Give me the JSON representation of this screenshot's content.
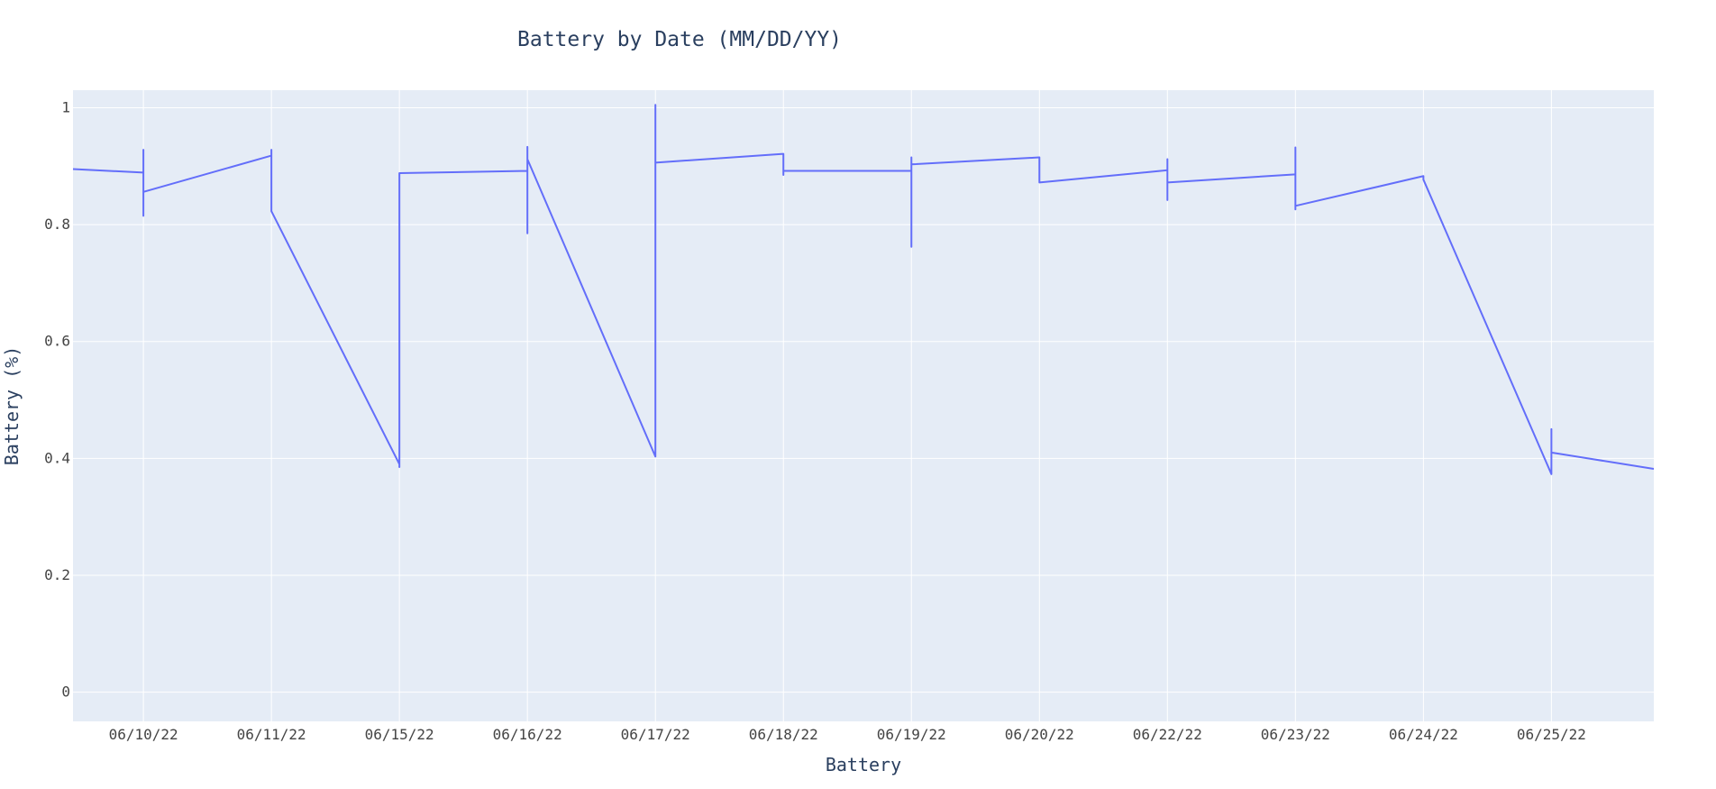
{
  "chart_data": {
    "type": "line",
    "title": "Battery by Date (MM/DD/YY)",
    "xlabel": "Battery",
    "ylabel": "Battery (%)",
    "ylim": [
      -0.05,
      1.03
    ],
    "y_ticks": [
      0,
      0.2,
      0.4,
      0.6,
      0.8,
      1
    ],
    "y_tick_labels": [
      "0",
      "0.2",
      "0.4",
      "0.6",
      "0.8",
      "1"
    ],
    "categories": [
      "06/10/22",
      "06/11/22",
      "06/15/22",
      "06/16/22",
      "06/17/22",
      "06/18/22",
      "06/19/22",
      "06/20/22",
      "06/22/22",
      "06/23/22",
      "06/24/22",
      "06/25/22"
    ],
    "x_range": [
      -0.55,
      11.8
    ],
    "grid": true,
    "line_color": "#636efa",
    "plot_background": "#e5ecf6",
    "series": [
      {
        "x": [
          -0.55,
          0,
          0,
          0,
          0,
          1,
          1,
          1,
          2,
          2,
          2,
          2,
          3,
          3,
          3,
          3,
          4,
          4,
          4,
          5,
          5,
          5,
          6,
          6,
          6,
          6,
          7,
          7,
          8,
          8,
          8,
          8,
          9,
          9,
          9,
          9,
          10,
          10,
          11,
          11,
          11,
          11.8
        ],
        "y": [
          0.895,
          0.889,
          0.928,
          0.815,
          0.856,
          0.918,
          0.928,
          0.823,
          0.39,
          0.385,
          0.39,
          0.888,
          0.892,
          0.785,
          0.933,
          0.912,
          0.403,
          1.005,
          0.906,
          0.921,
          0.885,
          0.892,
          0.892,
          0.762,
          0.915,
          0.903,
          0.915,
          0.872,
          0.893,
          0.842,
          0.912,
          0.872,
          0.886,
          0.932,
          0.826,
          0.832,
          0.883,
          0.877,
          0.373,
          0.45,
          0.41,
          0.382
        ]
      }
    ]
  }
}
